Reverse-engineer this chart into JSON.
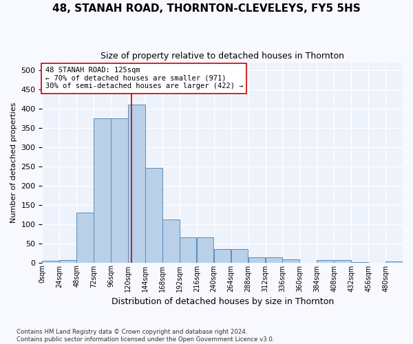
{
  "title": "48, STANAH ROAD, THORNTON-CLEVELEYS, FY5 5HS",
  "subtitle": "Size of property relative to detached houses in Thornton",
  "xlabel": "Distribution of detached houses by size in Thornton",
  "ylabel": "Number of detached properties",
  "bar_color": "#b8d0e8",
  "bar_edge_color": "#5b8db8",
  "background_color": "#eef2fb",
  "grid_color": "#ffffff",
  "bin_edges": [
    0,
    24,
    48,
    72,
    96,
    120,
    144,
    168,
    192,
    216,
    240,
    264,
    288,
    312,
    336,
    360,
    384,
    408,
    432,
    456,
    480,
    504
  ],
  "bin_labels": [
    "0sqm",
    "24sqm",
    "48sqm",
    "72sqm",
    "96sqm",
    "120sqm",
    "144sqm",
    "168sqm",
    "192sqm",
    "216sqm",
    "240sqm",
    "264sqm",
    "288sqm",
    "312sqm",
    "336sqm",
    "360sqm",
    "384sqm",
    "408sqm",
    "432sqm",
    "456sqm",
    "480sqm",
    ""
  ],
  "values": [
    4,
    6,
    130,
    375,
    375,
    410,
    245,
    112,
    65,
    65,
    35,
    35,
    14,
    14,
    8,
    0,
    6,
    6,
    1,
    0,
    3
  ],
  "property_sqm": 125,
  "property_line_color": "#cc0000",
  "annotation_text": "48 STANAH ROAD: 125sqm\n← 70% of detached houses are smaller (971)\n30% of semi-detached houses are larger (422) →",
  "annotation_box_color": "#ffffff",
  "annotation_box_edge_color": "#cc0000",
  "ylim": [
    0,
    520
  ],
  "yticks": [
    0,
    50,
    100,
    150,
    200,
    250,
    300,
    350,
    400,
    450,
    500
  ],
  "footer_line1": "Contains HM Land Registry data © Crown copyright and database right 2024.",
  "footer_line2": "Contains public sector information licensed under the Open Government Licence v3.0."
}
